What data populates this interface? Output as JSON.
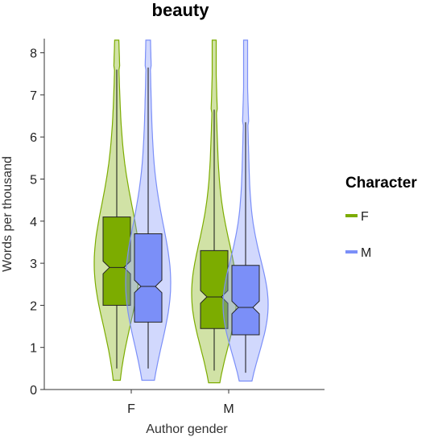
{
  "chart_data": {
    "type": "violin",
    "title": "beauty",
    "xlabel": "Author gender",
    "ylabel": "Words per thousand",
    "categories": [
      "F",
      "M"
    ],
    "ylim": [
      0,
      8.3
    ],
    "yticks": [
      0,
      1,
      2,
      3,
      4,
      5,
      6,
      7,
      8
    ],
    "grid": false,
    "legend": {
      "title": "Character",
      "position": "right"
    },
    "series": [
      {
        "name": "F",
        "color": "#7cac00",
        "stats": [
          {
            "category": "F",
            "whisker_low": 0.5,
            "q1": 2.0,
            "median": 2.9,
            "q3": 4.1,
            "whisker_high": 7.6,
            "notch_low": 2.75,
            "notch_high": 3.05,
            "violin_min": 0.22,
            "violin_max": 8.3
          },
          {
            "category": "M",
            "whisker_low": 0.45,
            "q1": 1.45,
            "median": 2.2,
            "q3": 3.3,
            "whisker_high": 6.65,
            "notch_low": 2.05,
            "notch_high": 2.35,
            "violin_min": 0.16,
            "violin_max": 8.3
          }
        ]
      },
      {
        "name": "M",
        "color": "#7b8ff8",
        "stats": [
          {
            "category": "F",
            "whisker_low": 0.5,
            "q1": 1.6,
            "median": 2.45,
            "q3": 3.7,
            "whisker_high": 7.65,
            "notch_low": 2.3,
            "notch_high": 2.6,
            "violin_min": 0.22,
            "violin_max": 8.3
          },
          {
            "category": "M",
            "whisker_low": 0.4,
            "q1": 1.3,
            "median": 1.95,
            "q3": 2.95,
            "whisker_high": 6.35,
            "notch_low": 1.8,
            "notch_high": 2.1,
            "violin_min": 0.2,
            "violin_max": 8.3
          }
        ]
      }
    ]
  }
}
